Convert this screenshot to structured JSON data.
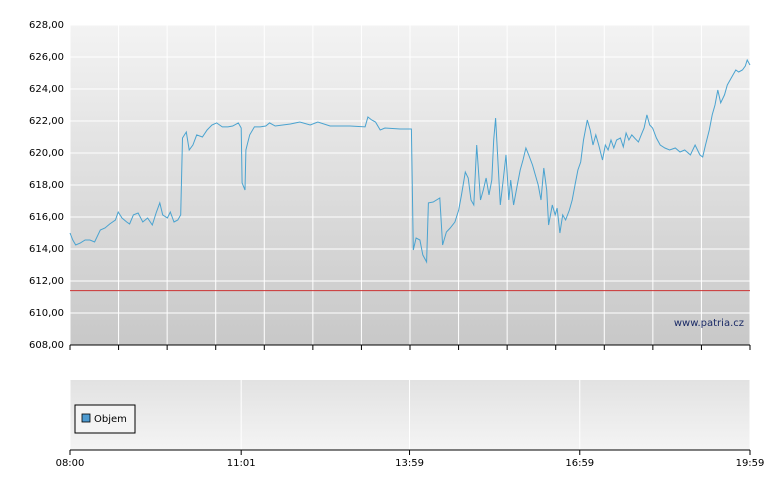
{
  "chart_data": {
    "type": "line",
    "xlim": [
      "08:00",
      "19:59"
    ],
    "xticks": [
      "08:00",
      "11:01",
      "13:59",
      "16:59",
      "19:59"
    ],
    "ylim": [
      608,
      628
    ],
    "yticks": [
      {
        "value": 608,
        "label": "608,00"
      },
      {
        "value": 610,
        "label": "610,00"
      },
      {
        "value": 612,
        "label": "612,00"
      },
      {
        "value": 614,
        "label": "614,00"
      },
      {
        "value": 616,
        "label": "616,00"
      },
      {
        "value": 618,
        "label": "618,00"
      },
      {
        "value": 620,
        "label": "620,00"
      },
      {
        "value": 622,
        "label": "622,00"
      },
      {
        "value": 624,
        "label": "624,00"
      },
      {
        "value": 626,
        "label": "626,00"
      },
      {
        "value": 628,
        "label": "628,00"
      }
    ],
    "grid": true,
    "reference_line": {
      "value": 611.4,
      "color": "#cc3333"
    },
    "watermark": "www.patria.cz",
    "volume": {
      "name": "Objem",
      "color": "#4d9ad0"
    },
    "x": [
      "08:00",
      "08:03",
      "08:06",
      "08:11",
      "08:16",
      "08:21",
      "08:26",
      "08:32",
      "08:37",
      "08:42",
      "08:48",
      "08:51",
      "08:55",
      "09:00",
      "09:03",
      "09:07",
      "09:12",
      "09:17",
      "09:22",
      "09:27",
      "09:31",
      "09:35",
      "09:38",
      "09:43",
      "09:46",
      "09:50",
      "09:54",
      "09:57",
      "09:59",
      "10:03",
      "10:06",
      "10:10",
      "10:14",
      "10:20",
      "10:25",
      "10:30",
      "10:35",
      "10:41",
      "10:47",
      "10:52",
      "10:58",
      "11:01",
      "11:02",
      "11:05",
      "11:06",
      "11:10",
      "11:15",
      "11:21",
      "11:27",
      "11:31",
      "11:37",
      "11:53",
      "12:03",
      "12:14",
      "12:22",
      "12:35",
      "12:56",
      "13:12",
      "13:15",
      "13:19",
      "13:23",
      "13:28",
      "13:33",
      "13:49",
      "14:01",
      "14:03",
      "14:06",
      "14:10",
      "14:13",
      "14:17",
      "14:19",
      "14:24",
      "14:31",
      "14:34",
      "14:38",
      "14:42",
      "14:47",
      "14:51",
      "14:54",
      "14:58",
      "15:01",
      "15:04",
      "15:07",
      "15:10",
      "15:14",
      "15:17",
      "15:20",
      "15:23",
      "15:26",
      "15:28",
      "15:30",
      "15:33",
      "15:35",
      "15:38",
      "15:41",
      "15:44",
      "15:46",
      "15:49",
      "15:53",
      "15:56",
      "15:59",
      "16:02",
      "16:05",
      "16:09",
      "16:12",
      "16:15",
      "16:18",
      "16:21",
      "16:24",
      "16:26",
      "16:30",
      "16:33",
      "16:35",
      "16:38",
      "16:41",
      "16:44",
      "16:48",
      "16:51",
      "16:54",
      "16:57",
      "17:00",
      "17:03",
      "17:07",
      "17:10",
      "17:13",
      "17:16",
      "17:19",
      "17:23",
      "17:26",
      "17:29",
      "17:32",
      "17:35",
      "17:38",
      "17:42",
      "17:45",
      "17:48",
      "17:51",
      "17:54",
      "17:57",
      "18:01",
      "18:04",
      "18:07",
      "18:10",
      "18:13",
      "18:16",
      "18:20",
      "18:24",
      "18:29",
      "18:34",
      "18:40",
      "18:45",
      "18:50",
      "18:56",
      "19:01",
      "19:06",
      "19:09",
      "19:12",
      "19:16",
      "19:19",
      "19:22",
      "19:25",
      "19:28",
      "19:32",
      "19:35",
      "19:38",
      "19:41",
      "19:44",
      "19:47",
      "19:51",
      "19:54",
      "19:56",
      "19:59"
    ],
    "series": [
      {
        "color": "#4aa3d0",
        "values": [
          615.0,
          614.56,
          614.25,
          614.38,
          614.56,
          614.56,
          614.44,
          615.19,
          615.31,
          615.56,
          615.81,
          616.31,
          615.94,
          615.69,
          615.56,
          616.13,
          616.25,
          615.69,
          615.94,
          615.5,
          616.25,
          616.88,
          616.13,
          615.94,
          616.31,
          615.69,
          615.81,
          616.13,
          620.94,
          621.31,
          620.19,
          620.5,
          621.13,
          621.0,
          621.44,
          621.75,
          621.88,
          621.63,
          621.63,
          621.69,
          621.88,
          621.56,
          618.13,
          617.69,
          620.19,
          621.13,
          621.63,
          621.63,
          621.69,
          621.88,
          621.69,
          621.81,
          621.94,
          621.75,
          621.94,
          621.69,
          621.69,
          621.63,
          622.25,
          622.06,
          621.94,
          621.44,
          621.56,
          621.5,
          621.5,
          613.94,
          614.69,
          614.56,
          613.63,
          613.19,
          616.88,
          616.94,
          617.19,
          614.25,
          615.06,
          615.31,
          615.69,
          616.44,
          617.38,
          618.81,
          618.44,
          617.06,
          616.75,
          620.5,
          617.06,
          617.69,
          618.44,
          617.38,
          618.31,
          620.81,
          622.19,
          618.94,
          616.75,
          618.31,
          619.88,
          617.06,
          618.31,
          616.75,
          618.0,
          618.94,
          619.56,
          620.31,
          619.88,
          619.25,
          618.63,
          618.0,
          617.06,
          619.06,
          617.69,
          615.5,
          616.75,
          616.13,
          616.56,
          615.0,
          616.13,
          615.81,
          616.44,
          617.06,
          618.0,
          618.94,
          619.44,
          620.81,
          622.06,
          621.44,
          620.5,
          621.13,
          620.5,
          619.56,
          620.5,
          620.19,
          620.81,
          620.31,
          620.81,
          620.94,
          620.38,
          621.25,
          620.81,
          621.13,
          620.94,
          620.69,
          621.13,
          621.56,
          622.38,
          621.75,
          621.56,
          620.94,
          620.5,
          620.31,
          620.19,
          620.31,
          620.06,
          620.19,
          619.88,
          620.5,
          619.88,
          619.75,
          620.5,
          621.44,
          622.38,
          623.0,
          623.94,
          623.13,
          623.63,
          624.25,
          624.56,
          624.88,
          625.19,
          625.06,
          625.19,
          625.44,
          625.81,
          625.5
        ]
      }
    ]
  }
}
